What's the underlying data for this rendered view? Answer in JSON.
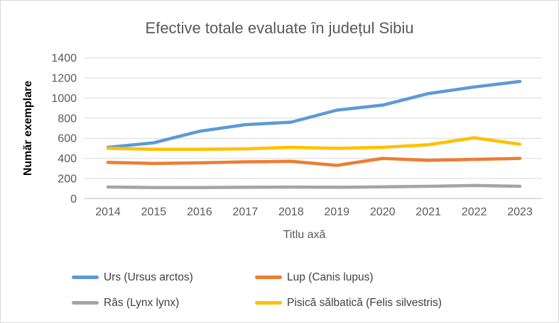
{
  "chart_data": {
    "type": "line",
    "title": "Efective totale evaluate în județul Sibiu",
    "xlabel": "Titlu axă",
    "ylabel": "Număr exemplare",
    "categories": [
      "2014",
      "2015",
      "2016",
      "2017",
      "2018",
      "2019",
      "2020",
      "2021",
      "2022",
      "2023"
    ],
    "ylim": [
      0,
      1400
    ],
    "y_ticks": [
      0,
      200,
      400,
      600,
      800,
      1000,
      1200,
      1400
    ],
    "grid": true,
    "legend_position": "bottom",
    "colors": {
      "gridline": "#d9d9d9",
      "axis_line": "#bfbfbf",
      "tick_label": "#595959",
      "title_text": "#595959",
      "legend_text": "#404040"
    },
    "series": [
      {
        "id": "urs",
        "name": "Urs (Ursus arctos)",
        "color": "#5B9BD5",
        "values": [
          510,
          555,
          670,
          735,
          760,
          880,
          930,
          1045,
          1110,
          1165
        ]
      },
      {
        "id": "lup",
        "name": "Lup (Canis lupus)",
        "color": "#ED7D31",
        "values": [
          360,
          350,
          355,
          365,
          370,
          330,
          400,
          380,
          390,
          400
        ]
      },
      {
        "id": "ras",
        "name": "Râs (Lynx lynx)",
        "color": "#A5A5A5",
        "values": [
          115,
          110,
          110,
          112,
          114,
          112,
          116,
          122,
          130,
          122
        ]
      },
      {
        "id": "pisica",
        "name": "Pisică sălbatică (Felis silvestris)",
        "color": "#FFC000",
        "values": [
          500,
          490,
          490,
          495,
          510,
          500,
          510,
          535,
          605,
          540
        ]
      }
    ]
  }
}
